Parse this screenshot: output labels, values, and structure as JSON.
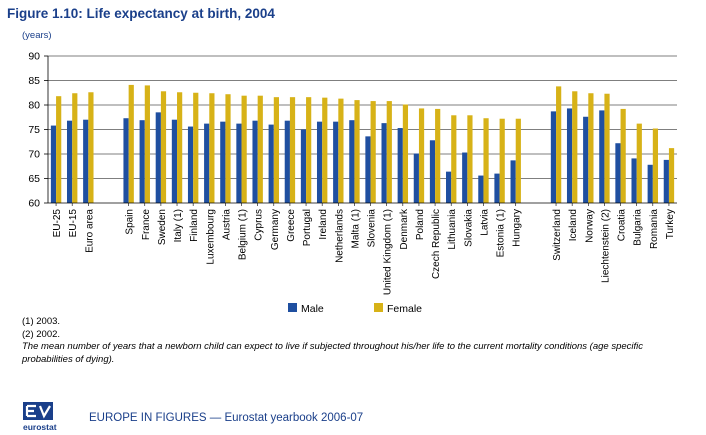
{
  "figure": {
    "title": "Figure 1.10: Life expectancy at birth, 2004",
    "unit": "(years)"
  },
  "colors": {
    "male": "#1f4fa0",
    "female": "#d7b217",
    "axis": "#000000",
    "grid": "#000000",
    "brand": "#1a3f8a"
  },
  "chart_data": {
    "type": "bar",
    "title": "",
    "ylabel": "(years)",
    "xlabel": "",
    "ylim": [
      60,
      90
    ],
    "yticks": [
      60,
      65,
      70,
      75,
      80,
      85,
      90
    ],
    "grid": true,
    "legend_position": "bottom",
    "categories": [
      "EU-25",
      "EU-15",
      "Euro area",
      "Spain",
      "France",
      "Sweden",
      "Italy (1)",
      "Finland",
      "Luxembourg",
      "Austria",
      "Belgium (1)",
      "Cyprus",
      "Germany",
      "Greece",
      "Portugal",
      "Ireland",
      "Netherlands",
      "Malta (1)",
      "Slovenia",
      "United Kingdom (1)",
      "Denmark",
      "Poland",
      "Czech Republic",
      "Lithuania",
      "Slovakia",
      "Latvia",
      "Estonia (1)",
      "Hungary",
      "Switzerland",
      "Iceland",
      "Norway",
      "Liechtenstein (2)",
      "Croatia",
      "Bulgaria",
      "Romania",
      "Turkey"
    ],
    "groups": [
      3,
      25,
      8
    ],
    "series": [
      {
        "name": "Male",
        "values": [
          75.8,
          76.8,
          77.0,
          77.3,
          76.9,
          78.5,
          77.0,
          75.6,
          76.2,
          76.6,
          76.2,
          76.8,
          76.0,
          76.8,
          75.0,
          76.6,
          76.6,
          76.9,
          73.6,
          76.3,
          75.3,
          70.1,
          72.8,
          66.4,
          70.3,
          65.6,
          66.0,
          68.7,
          78.7,
          79.3,
          77.6,
          78.9,
          72.2,
          69.1,
          67.8,
          68.8
        ]
      },
      {
        "name": "Female",
        "values": [
          81.8,
          82.4,
          82.6,
          84.1,
          84.0,
          82.8,
          82.6,
          82.5,
          82.4,
          82.2,
          81.9,
          81.9,
          81.6,
          81.6,
          81.6,
          81.5,
          81.3,
          81.0,
          80.8,
          80.8,
          80.1,
          79.3,
          79.2,
          77.9,
          77.9,
          77.3,
          77.2,
          77.2,
          83.8,
          82.8,
          82.4,
          82.3,
          79.2,
          76.2,
          75.2,
          71.2
        ]
      }
    ]
  },
  "notes": {
    "note1": "(1) 2003.",
    "note2": "(2) 2002.",
    "definition": "The mean number of years that a newborn child can expect to live if subjected throughout his/her life to the current mortality conditions (age specific probabilities of dying)."
  },
  "footer": {
    "logo_text": "eurostat",
    "text": "EUROPE IN FIGURES — Eurostat yearbook 2006-07"
  }
}
